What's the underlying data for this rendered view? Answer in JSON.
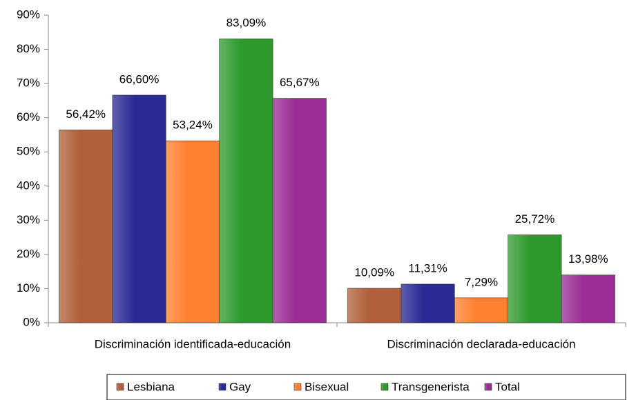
{
  "chart_data": {
    "type": "bar",
    "categories": [
      "Discriminación identificada-educación",
      "Discriminación declarada-educación"
    ],
    "series": [
      {
        "name": "Lesbiana",
        "color": "#b0603a",
        "values": [
          56.42,
          10.09
        ],
        "value_labels": [
          "56,42%",
          "10,09%"
        ]
      },
      {
        "name": "Gay",
        "color": "#2a2a96",
        "values": [
          66.6,
          11.31
        ],
        "value_labels": [
          "66,60%",
          "11,31%"
        ]
      },
      {
        "name": "Bisexual",
        "color": "#ff8030",
        "values": [
          53.24,
          7.29
        ],
        "value_labels": [
          "53,24%",
          "7,29%"
        ]
      },
      {
        "name": "Transgenerista",
        "color": "#2e9a2e",
        "values": [
          83.09,
          25.72
        ],
        "value_labels": [
          "83,09%",
          "25,72%"
        ]
      },
      {
        "name": "Total",
        "color": "#9a2e96",
        "values": [
          65.67,
          13.98
        ],
        "value_labels": [
          "65,67%",
          "13,98%"
        ]
      }
    ],
    "ylim": [
      0,
      90
    ],
    "yticks": [
      {
        "value": 0,
        "label": "0%"
      },
      {
        "value": 10,
        "label": "10%"
      },
      {
        "value": 20,
        "label": "20%"
      },
      {
        "value": 30,
        "label": "30%"
      },
      {
        "value": 40,
        "label": "40%"
      },
      {
        "value": 50,
        "label": "50%"
      },
      {
        "value": 60,
        "label": "60%"
      },
      {
        "value": 70,
        "label": "70%"
      },
      {
        "value": 80,
        "label": "80%"
      },
      {
        "value": 90,
        "label": "90%"
      }
    ],
    "legend": "bottom"
  }
}
